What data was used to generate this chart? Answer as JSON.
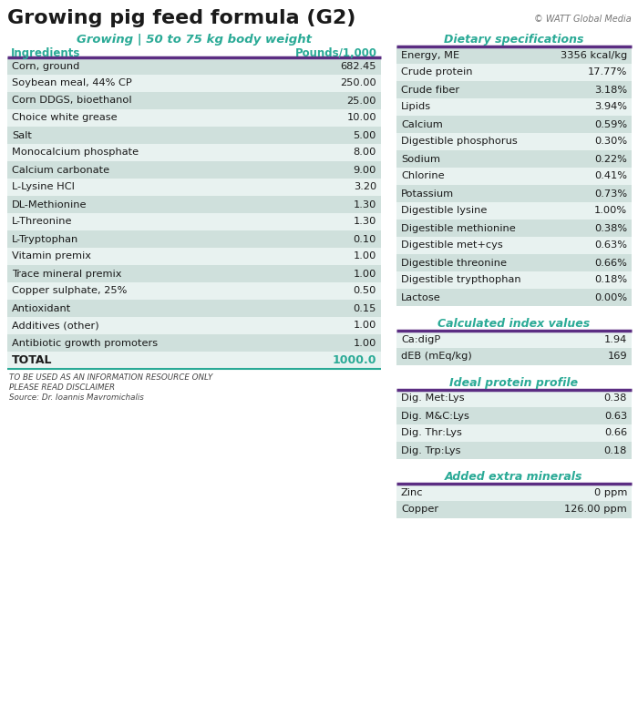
{
  "title": "Growing pig feed formula (G2)",
  "copyright": "© WATT Global Media",
  "left_subtitle": "Growing | 50 to 75 kg body weight",
  "left_col_header": [
    "Ingredients",
    "Pounds/1,000"
  ],
  "left_rows": [
    [
      "Corn, ground",
      "682.45"
    ],
    [
      "Soybean meal, 44% CP",
      "250.00"
    ],
    [
      "Corn DDGS, bioethanol",
      "25.00"
    ],
    [
      "Choice white grease",
      "10.00"
    ],
    [
      "Salt",
      "5.00"
    ],
    [
      "Monocalcium phosphate",
      "8.00"
    ],
    [
      "Calcium carbonate",
      "9.00"
    ],
    [
      "L-Lysine HCl",
      "3.20"
    ],
    [
      "DL-Methionine",
      "1.30"
    ],
    [
      "L-Threonine",
      "1.30"
    ],
    [
      "L-Tryptophan",
      "0.10"
    ],
    [
      "Vitamin premix",
      "1.00"
    ],
    [
      "Trace mineral premix",
      "1.00"
    ],
    [
      "Copper sulphate, 25%",
      "0.50"
    ],
    [
      "Antioxidant",
      "0.15"
    ],
    [
      "Additives (other)",
      "1.00"
    ],
    [
      "Antibiotic growth promoters",
      "1.00"
    ]
  ],
  "total_label": "TOTAL",
  "total_value": "1000.0",
  "footnote_lines": [
    "TO BE USED AS AN INFORMATION RESOURCE ONLY",
    "PLEASE READ DISCLAIMER",
    "Source: Dr. Ioannis Mavromichalis"
  ],
  "right_section1_title": "Dietary specifications",
  "right_section1_rows": [
    [
      "Energy, ME",
      "3356 kcal/kg"
    ],
    [
      "Crude protein",
      "17.77%"
    ],
    [
      "Crude fiber",
      "3.18%"
    ],
    [
      "Lipids",
      "3.94%"
    ],
    [
      "Calcium",
      "0.59%"
    ],
    [
      "Digestible phosphorus",
      "0.30%"
    ],
    [
      "Sodium",
      "0.22%"
    ],
    [
      "Chlorine",
      "0.41%"
    ],
    [
      "Potassium",
      "0.73%"
    ],
    [
      "Digestible lysine",
      "1.00%"
    ],
    [
      "Digestible methionine",
      "0.38%"
    ],
    [
      "Digestible met+cys",
      "0.63%"
    ],
    [
      "Digestible threonine",
      "0.66%"
    ],
    [
      "Digestible trypthophan",
      "0.18%"
    ],
    [
      "Lactose",
      "0.00%"
    ]
  ],
  "right_section2_title": "Calculated index values",
  "right_section2_rows": [
    [
      "Ca:digP",
      "1.94"
    ],
    [
      "dEB (mEq/kg)",
      "169"
    ]
  ],
  "right_section3_title": "Ideal protein profile",
  "right_section3_rows": [
    [
      "Dig. Met:Lys",
      "0.38"
    ],
    [
      "Dig. M&C:Lys",
      "0.63"
    ],
    [
      "Dig. Thr:Lys",
      "0.66"
    ],
    [
      "Dig. Trp:Lys",
      "0.18"
    ]
  ],
  "right_section4_title": "Added extra minerals",
  "right_section4_rows": [
    [
      "Zinc",
      "0 ppm"
    ],
    [
      "Copper",
      "126.00 ppm"
    ]
  ],
  "bg_color": "#ffffff",
  "row_alt1_color": "#cfe0dc",
  "row_alt2_color": "#e8f2f0",
  "teal_color": "#2aaa96",
  "purple_color": "#5b2d82",
  "dark_text": "#1a1a1a",
  "total_text_color": "#2aaa96"
}
